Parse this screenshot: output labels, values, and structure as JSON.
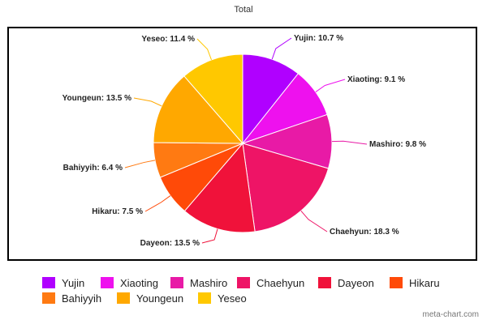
{
  "chart_data": {
    "type": "pie",
    "title": "Total",
    "slices": [
      {
        "name": "Yujin",
        "value": 10.7,
        "label": "Yujin: 10.7 %",
        "color": "#b000ff"
      },
      {
        "name": "Xiaoting",
        "value": 9.1,
        "label": "Xiaoting: 9.1 %",
        "color": "#ee11ee"
      },
      {
        "name": "Mashiro",
        "value": 9.8,
        "label": "Mashiro: 9.8 %",
        "color": "#e81aa6"
      },
      {
        "name": "Chaehyun",
        "value": 18.3,
        "label": "Chaehyun: 18.3 %",
        "color": "#ee1466"
      },
      {
        "name": "Dayeon",
        "value": 13.5,
        "label": "Dayeon: 13.5 %",
        "color": "#f0123a"
      },
      {
        "name": "Hikaru",
        "value": 7.5,
        "label": "Hikaru: 7.5 %",
        "color": "#ff4a08"
      },
      {
        "name": "Bahiyyih",
        "value": 6.4,
        "label": "Bahiyyih: 6.4 %",
        "color": "#ff7a12"
      },
      {
        "name": "Youngeun",
        "value": 13.5,
        "label": "Youngeun: 13.5 %",
        "color": "#ffa800"
      },
      {
        "name": "Yeseo",
        "value": 11.4,
        "label": "Yeseo: 11.4 %",
        "color": "#ffc800"
      }
    ],
    "legend_position": "bottom"
  },
  "watermark": "meta-chart.com"
}
